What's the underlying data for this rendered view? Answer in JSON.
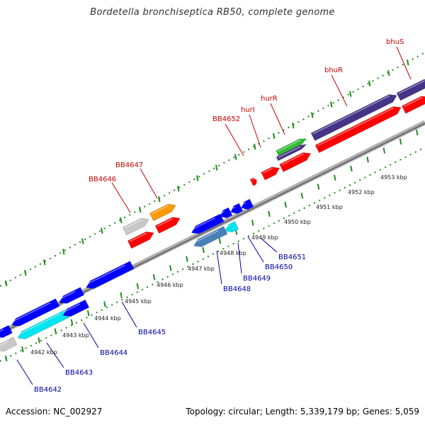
{
  "title": "Bordetella bronchiseptica RB50, complete genome",
  "footer": {
    "accession": "Accession: NC_002927",
    "summary": "Topology: circular; Length: 5,339,179 bp; Genes: 5,059"
  },
  "colors": {
    "forward_strand": "#ff0000",
    "reverse_strand": "#0000ff",
    "forward_label": "#cc0000",
    "reverse_label": "#0000aa",
    "tick_mark": "#228B22",
    "backbone": "#888888"
  },
  "scale": {
    "unit": "kbp",
    "labels": [
      "4942 kbp",
      "4943 kbp",
      "4944 kbp",
      "4945 kbp",
      "4946 kbp",
      "4947 kbp",
      "4948 kbp",
      "4949 kbp",
      "4950 kbp",
      "4951 kbp",
      "4952 kbp",
      "4953 kbp"
    ]
  },
  "forward_genes": [
    "BB4646",
    "BB4647",
    "BB4652",
    "hurI",
    "hurR",
    "bhuR",
    "bhuS"
  ],
  "reverse_genes": [
    "BB4642",
    "BB4643",
    "BB4644",
    "BB4645",
    "BB4648",
    "BB4649",
    "BB4650",
    "BB4651"
  ]
}
